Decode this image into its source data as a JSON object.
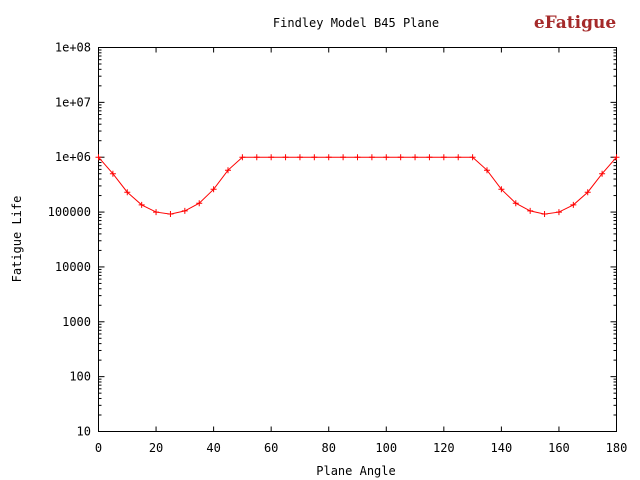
{
  "logo": {
    "text": "eFatigue",
    "color": "#a52a2a"
  },
  "chart_data": {
    "type": "line",
    "title": "Findley Model B45 Plane",
    "xlabel": "Plane Angle",
    "ylabel": "Fatigue Life",
    "xlim": [
      0,
      180
    ],
    "ylim": [
      10,
      100000000
    ],
    "yscale": "log",
    "grid": false,
    "x_ticks": [
      0,
      20,
      40,
      60,
      80,
      100,
      120,
      140,
      160,
      180
    ],
    "x_tick_labels": [
      "0",
      "20",
      "40",
      "60",
      "80",
      "100",
      "120",
      "140",
      "160",
      "180"
    ],
    "y_ticks": [
      10,
      100,
      1000,
      10000,
      100000,
      1000000,
      10000000,
      100000000
    ],
    "y_tick_labels": [
      "10",
      "100",
      "1000",
      "10000",
      "100000",
      "1e+06",
      "1e+07",
      "1e+08"
    ],
    "series": [
      {
        "color": "#ff0000",
        "marker": "plus",
        "x": [
          0,
          5,
          10,
          15,
          20,
          25,
          30,
          35,
          40,
          45,
          50,
          55,
          60,
          65,
          70,
          75,
          80,
          85,
          90,
          95,
          100,
          105,
          110,
          115,
          120,
          125,
          130,
          135,
          140,
          145,
          150,
          155,
          160,
          165,
          170,
          175,
          180
        ],
        "y": [
          1000000,
          500000,
          230000,
          135000,
          100000,
          92000,
          105000,
          145000,
          260000,
          580000,
          1000000,
          1000000,
          1000000,
          1000000,
          1000000,
          1000000,
          1000000,
          1000000,
          1000000,
          1000000,
          1000000,
          1000000,
          1000000,
          1000000,
          1000000,
          1000000,
          1000000,
          580000,
          260000,
          145000,
          105000,
          92000,
          100000,
          135000,
          230000,
          500000,
          1000000
        ]
      }
    ]
  }
}
